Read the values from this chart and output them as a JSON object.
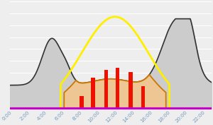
{
  "bg_color": "#eeeeee",
  "hline_color": "#ffffff",
  "hline_count": 9,
  "purple_color": "#cc00cc",
  "purple_lw": 3.0,
  "consumption_line_color": "#333333",
  "consumption_fill_color": "#cccccc",
  "consumption_lw": 1.2,
  "solar_outline_color": "#cc7700",
  "solar_fill_color": "#f5c58a",
  "solar_fill_alpha": 0.85,
  "yellow_color": "#ffee00",
  "yellow_lw": 2.0,
  "bar_color": "#ee1100",
  "bar_positions": [
    8.2,
    9.5,
    11.0,
    12.3,
    13.8,
    15.2
  ],
  "bar_heights_norm": [
    0.12,
    0.3,
    0.38,
    0.4,
    0.36,
    0.22
  ],
  "xlim": [
    0,
    23
  ],
  "ylim_max": 1.05,
  "tick_color": "#7799bb",
  "tick_fontsize": 5.2
}
